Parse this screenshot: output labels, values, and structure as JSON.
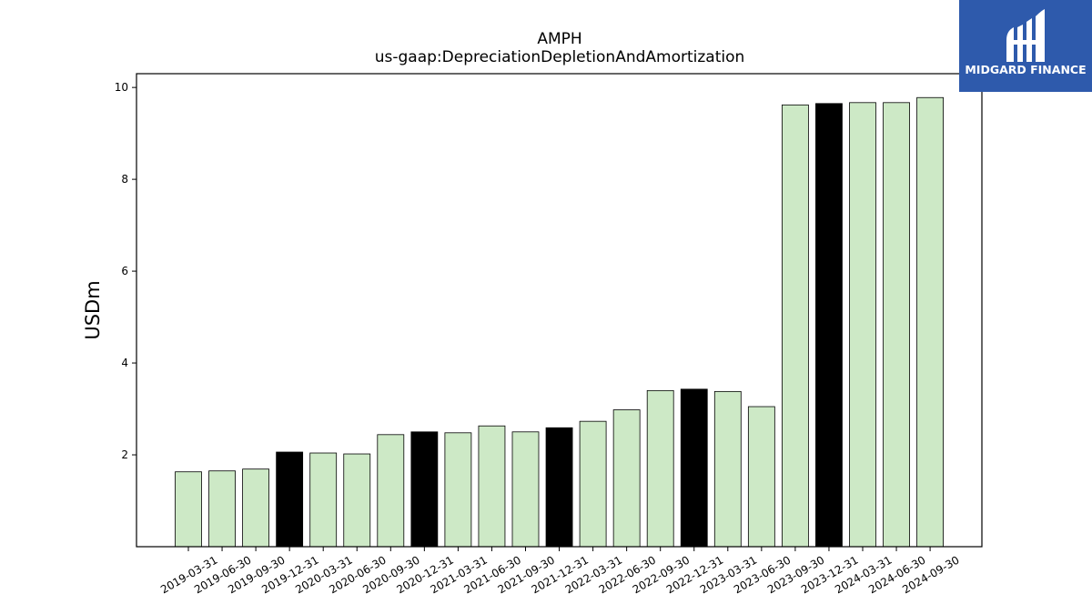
{
  "chart_data": {
    "type": "bar",
    "title": "AMPH",
    "subtitle": "us-gaap:DepreciationDepletionAndAmortization",
    "xlabel": "",
    "ylabel": "USDm",
    "ylim": [
      0,
      10.3
    ],
    "yticks": [
      2,
      4,
      6,
      8,
      10
    ],
    "grid": false,
    "categories": [
      "2019-03-31",
      "2019-06-30",
      "2019-09-30",
      "2019-12-31",
      "2020-03-31",
      "2020-06-30",
      "2020-09-30",
      "2020-12-31",
      "2021-03-31",
      "2021-06-30",
      "2021-09-30",
      "2021-12-31",
      "2022-03-31",
      "2022-06-30",
      "2022-09-30",
      "2022-12-31",
      "2023-03-31",
      "2023-06-30",
      "2023-09-30",
      "2023-12-31",
      "2024-03-31",
      "2024-06-30",
      "2024-09-30"
    ],
    "values": [
      1.63,
      1.65,
      1.69,
      2.06,
      2.04,
      2.02,
      2.44,
      2.5,
      2.48,
      2.63,
      2.5,
      2.59,
      2.73,
      2.98,
      3.4,
      3.43,
      3.38,
      3.05,
      9.62,
      9.65,
      9.67,
      9.67,
      9.78
    ],
    "bar_colors": {
      "default": "#cde9c6",
      "year_end": "#000000"
    },
    "year_end_categories": [
      "2019-12-31",
      "2020-12-31",
      "2021-12-31",
      "2022-12-31",
      "2023-12-31"
    ]
  },
  "logo": {
    "text": "MIDGARD FINANCE",
    "background": "#2e5aac"
  }
}
